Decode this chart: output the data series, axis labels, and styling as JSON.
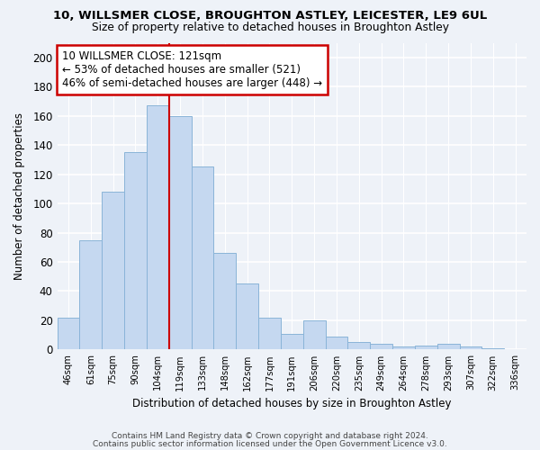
{
  "title": "10, WILLSMER CLOSE, BROUGHTON ASTLEY, LEICESTER, LE9 6UL",
  "subtitle": "Size of property relative to detached houses in Broughton Astley",
  "xlabel": "Distribution of detached houses by size in Broughton Astley",
  "ylabel": "Number of detached properties",
  "bar_labels": [
    "46sqm",
    "61sqm",
    "75sqm",
    "90sqm",
    "104sqm",
    "119sqm",
    "133sqm",
    "148sqm",
    "162sqm",
    "177sqm",
    "191sqm",
    "206sqm",
    "220sqm",
    "235sqm",
    "249sqm",
    "264sqm",
    "278sqm",
    "293sqm",
    "307sqm",
    "322sqm",
    "336sqm"
  ],
  "bar_values": [
    22,
    75,
    108,
    135,
    167,
    160,
    125,
    66,
    45,
    22,
    11,
    20,
    9,
    5,
    4,
    2,
    3,
    4,
    2,
    1,
    0
  ],
  "bar_color": "#c5d8f0",
  "bar_edge_color": "#8ab4d8",
  "vline_x": 4.5,
  "vline_color": "#cc0000",
  "annotation_title": "10 WILLSMER CLOSE: 121sqm",
  "annotation_line1": "← 53% of detached houses are smaller (521)",
  "annotation_line2": "46% of semi-detached houses are larger (448) →",
  "annotation_box_color": "#ffffff",
  "annotation_box_edge": "#cc0000",
  "ylim": [
    0,
    210
  ],
  "yticks": [
    0,
    20,
    40,
    60,
    80,
    100,
    120,
    140,
    160,
    180,
    200
  ],
  "footer1": "Contains HM Land Registry data © Crown copyright and database right 2024.",
  "footer2": "Contains public sector information licensed under the Open Government Licence v3.0.",
  "bg_color": "#eef2f8",
  "plot_bg_color": "#eef2f8",
  "grid_color": "#ffffff"
}
